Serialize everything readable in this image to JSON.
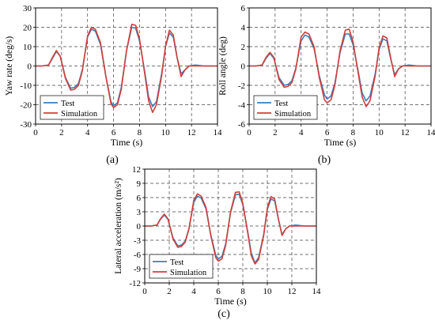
{
  "chart_data": [
    {
      "type": "line",
      "panel_label": "(a)",
      "xlabel": "Time (s)",
      "ylabel": "Yaw rate (deg/s)",
      "xlim": [
        0,
        14
      ],
      "ylim": [
        -30,
        30
      ],
      "xticks": [
        0,
        2,
        4,
        6,
        8,
        10,
        12,
        14
      ],
      "yticks": [
        -30,
        -20,
        -10,
        0,
        10,
        20,
        30
      ],
      "grid": true,
      "legend_position": "bottom-left",
      "series": [
        {
          "name": "Test",
          "color": "#3a7ebf",
          "x": [
            0,
            0.5,
            1.0,
            1.3,
            1.6,
            1.9,
            2.3,
            2.7,
            3.0,
            3.3,
            3.6,
            4.0,
            4.3,
            4.6,
            5.0,
            5.4,
            5.8,
            6.0,
            6.3,
            6.6,
            7.0,
            7.4,
            7.7,
            8.0,
            8.4,
            8.7,
            9.0,
            9.3,
            9.7,
            10.0,
            10.3,
            10.6,
            10.9,
            11.2,
            11.5,
            11.8,
            12.3,
            13.0,
            14.0
          ],
          "y": [
            0,
            0,
            0.5,
            4,
            7.5,
            5,
            -6,
            -11.5,
            -11,
            -9,
            -2,
            15,
            19,
            18,
            11,
            -5,
            -18.5,
            -20.5,
            -19,
            -11,
            8,
            20,
            19.5,
            13,
            -3,
            -16,
            -21,
            -18.5,
            -4,
            10,
            17,
            15,
            4,
            -4,
            -2,
            0,
            0.5,
            0,
            0
          ]
        },
        {
          "name": "Simulation",
          "color": "#d13f3a",
          "x": [
            0,
            0.5,
            1.0,
            1.3,
            1.6,
            1.9,
            2.3,
            2.7,
            3.0,
            3.3,
            3.6,
            4.0,
            4.3,
            4.6,
            5.0,
            5.4,
            5.8,
            6.0,
            6.3,
            6.6,
            7.0,
            7.4,
            7.7,
            8.0,
            8.4,
            8.7,
            9.0,
            9.3,
            9.7,
            10.0,
            10.3,
            10.6,
            10.9,
            11.2,
            11.5,
            11.8,
            12.3,
            13.0,
            14.0
          ],
          "y": [
            0,
            0,
            0.5,
            4.5,
            8,
            5,
            -6.5,
            -12.5,
            -12,
            -10,
            -2.5,
            15.5,
            20,
            19,
            12,
            -5,
            -19.5,
            -21.5,
            -20,
            -12,
            8,
            21.5,
            21,
            14,
            -4,
            -18,
            -24,
            -20,
            -5,
            10,
            18.5,
            16,
            4,
            -5.5,
            -2,
            0,
            0,
            0,
            0
          ]
        }
      ]
    },
    {
      "type": "line",
      "panel_label": "(b)",
      "xlabel": "Time (s)",
      "ylabel": "Roll angle (deg)",
      "xlim": [
        0,
        14
      ],
      "ylim": [
        -6,
        6
      ],
      "xticks": [
        0,
        2,
        4,
        6,
        8,
        10,
        12,
        14
      ],
      "yticks": [
        -6,
        -4,
        -2,
        0,
        2,
        4,
        6
      ],
      "grid": true,
      "legend_position": "bottom-left",
      "series": [
        {
          "name": "Test",
          "color": "#3a7ebf",
          "x": [
            0,
            0.5,
            1.0,
            1.3,
            1.6,
            1.9,
            2.3,
            2.7,
            3.0,
            3.3,
            3.6,
            4.0,
            4.3,
            4.6,
            5.0,
            5.4,
            5.8,
            6.0,
            6.3,
            6.6,
            7.0,
            7.4,
            7.7,
            8.0,
            8.4,
            8.7,
            9.0,
            9.3,
            9.7,
            10.0,
            10.3,
            10.6,
            10.9,
            11.2,
            11.5,
            11.8,
            12.3,
            13.0,
            14.0
          ],
          "y": [
            0,
            0,
            0.1,
            0.8,
            1.3,
            0.8,
            -1.2,
            -2.0,
            -1.9,
            -1.5,
            -0.2,
            2.6,
            3.2,
            3.0,
            1.8,
            -1.0,
            -3.0,
            -3.4,
            -3.1,
            -1.8,
            1.4,
            3.3,
            3.3,
            2.2,
            -0.6,
            -2.8,
            -3.6,
            -3.1,
            -0.8,
            1.7,
            2.8,
            2.6,
            0.7,
            -0.9,
            -0.3,
            0,
            0.1,
            0,
            0
          ]
        },
        {
          "name": "Simulation",
          "color": "#d13f3a",
          "x": [
            0,
            0.5,
            1.0,
            1.3,
            1.6,
            1.9,
            2.3,
            2.7,
            3.0,
            3.3,
            3.6,
            4.0,
            4.3,
            4.6,
            5.0,
            5.4,
            5.8,
            6.0,
            6.3,
            6.6,
            7.0,
            7.4,
            7.7,
            8.0,
            8.4,
            8.7,
            9.0,
            9.3,
            9.7,
            10.0,
            10.3,
            10.6,
            10.9,
            11.2,
            11.5,
            11.8,
            12.3,
            13.0,
            14.0
          ],
          "y": [
            0,
            0,
            0.1,
            0.9,
            1.4,
            0.9,
            -1.4,
            -2.2,
            -2.1,
            -1.7,
            -0.3,
            3.0,
            3.5,
            3.3,
            2.0,
            -1.2,
            -3.5,
            -3.8,
            -3.5,
            -2.0,
            1.6,
            3.7,
            3.8,
            2.5,
            -0.8,
            -3.2,
            -4.2,
            -3.6,
            -1.0,
            1.9,
            3.1,
            2.9,
            0.8,
            -1.1,
            -0.3,
            0,
            0,
            0,
            0
          ]
        }
      ]
    },
    {
      "type": "line",
      "panel_label": "(c)",
      "xlabel": "Time (s)",
      "ylabel": "Lateral acceleration (m/s²)",
      "xlim": [
        0,
        14
      ],
      "ylim": [
        -12,
        12
      ],
      "xticks": [
        0,
        2,
        4,
        6,
        8,
        10,
        12,
        14
      ],
      "yticks": [
        -12,
        -9,
        -6,
        -3,
        0,
        3,
        6,
        9,
        12
      ],
      "grid": true,
      "legend_position": "bottom-left",
      "series": [
        {
          "name": "Test",
          "color": "#3a7ebf",
          "x": [
            0,
            0.5,
            1.0,
            1.3,
            1.6,
            1.9,
            2.3,
            2.7,
            3.0,
            3.3,
            3.6,
            4.0,
            4.3,
            4.6,
            5.0,
            5.4,
            5.8,
            6.0,
            6.3,
            6.6,
            7.0,
            7.4,
            7.7,
            8.0,
            8.4,
            8.7,
            9.0,
            9.3,
            9.7,
            10.0,
            10.3,
            10.6,
            10.9,
            11.2,
            11.5,
            11.8,
            12.3,
            13.0,
            14.0
          ],
          "y": [
            0,
            0,
            0.2,
            1.5,
            2.3,
            1.4,
            -2.5,
            -4.2,
            -4.0,
            -3.2,
            -0.6,
            5.0,
            6.3,
            5.9,
            3.6,
            -2.0,
            -6.2,
            -6.9,
            -6.4,
            -3.8,
            2.8,
            6.6,
            6.7,
            4.5,
            -1.2,
            -5.8,
            -7.8,
            -6.6,
            -1.8,
            3.5,
            5.7,
            5.3,
            1.5,
            -1.8,
            -0.6,
            0,
            0.2,
            0,
            0
          ]
        },
        {
          "name": "Simulation",
          "color": "#d13f3a",
          "x": [
            0,
            0.5,
            1.0,
            1.3,
            1.6,
            1.9,
            2.3,
            2.7,
            3.0,
            3.3,
            3.6,
            4.0,
            4.3,
            4.6,
            5.0,
            5.4,
            5.8,
            6.0,
            6.3,
            6.6,
            7.0,
            7.4,
            7.7,
            8.0,
            8.4,
            8.7,
            9.0,
            9.3,
            9.7,
            10.0,
            10.3,
            10.6,
            10.9,
            11.2,
            11.5,
            11.8,
            12.3,
            13.0,
            14.0
          ],
          "y": [
            0,
            0,
            0.2,
            1.6,
            2.5,
            1.5,
            -2.7,
            -4.5,
            -4.3,
            -3.4,
            -0.7,
            5.4,
            6.8,
            6.3,
            3.9,
            -2.2,
            -6.7,
            -7.4,
            -6.9,
            -4.1,
            3.0,
            7.1,
            7.2,
            4.8,
            -1.4,
            -6.3,
            -8.0,
            -7.0,
            -2.0,
            3.8,
            6.2,
            5.7,
            1.6,
            -2.0,
            -0.6,
            0,
            0,
            0,
            0
          ]
        }
      ]
    }
  ]
}
